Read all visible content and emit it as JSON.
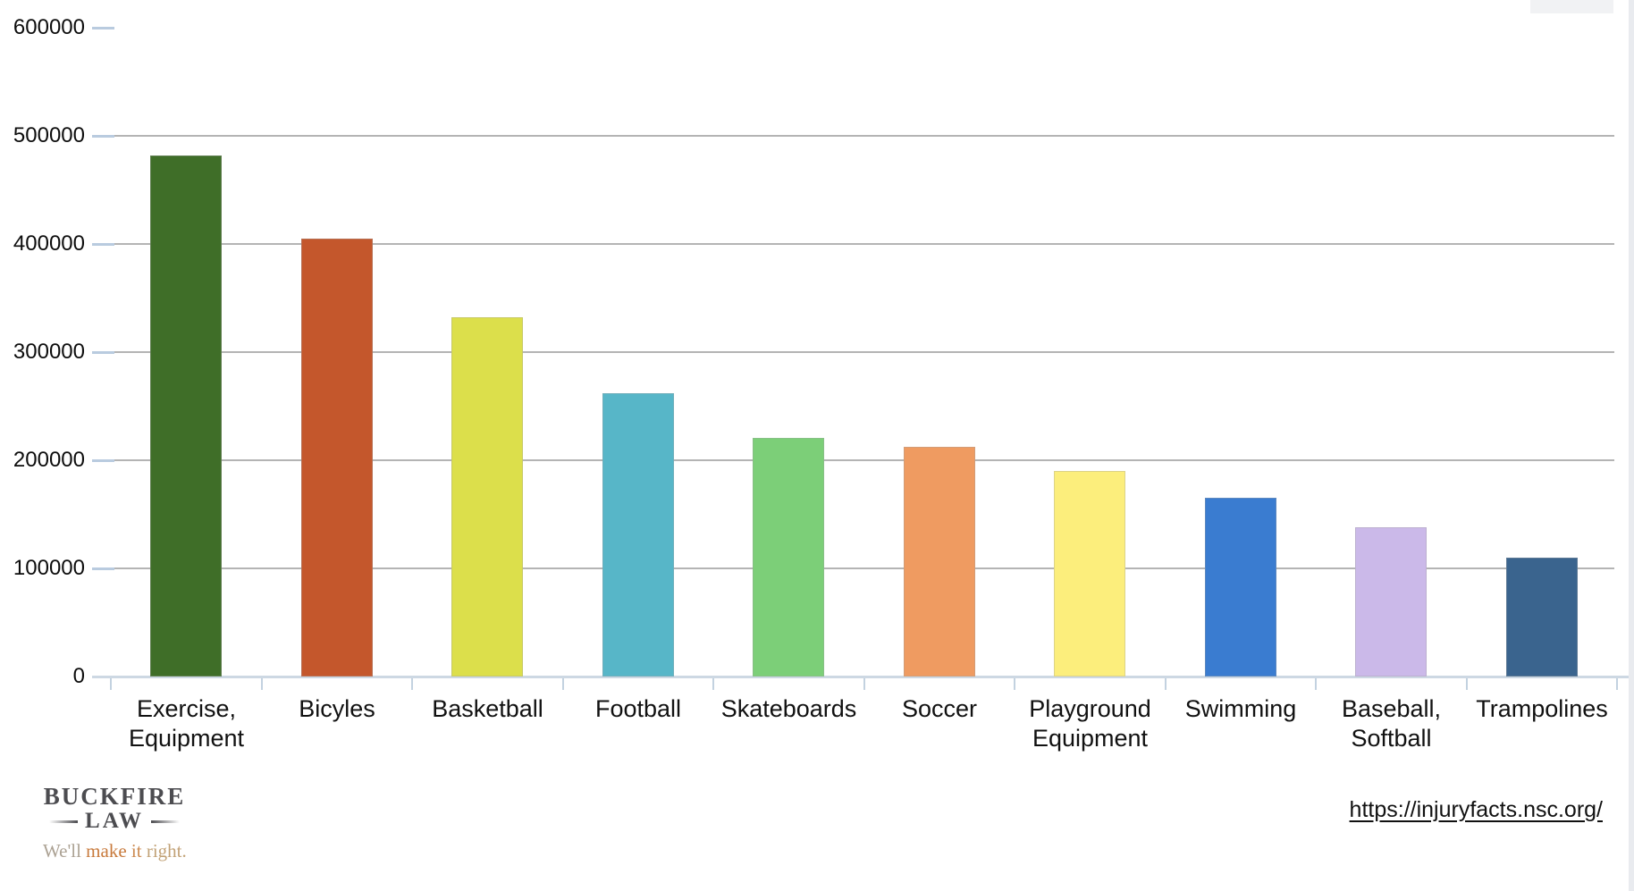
{
  "chart_data": {
    "type": "bar",
    "categories": [
      "Exercise,\nEquipment",
      "Bicyles",
      "Basketball",
      "Football",
      "Skateboards",
      "Soccer",
      "Playground\nEquipment",
      "Swimming",
      "Baseball,\nSoftball",
      "Trampolines"
    ],
    "values": [
      482000,
      405000,
      332000,
      262000,
      221000,
      212000,
      190000,
      165000,
      138000,
      110000
    ],
    "bar_colors": [
      "#3f6e28",
      "#c4572c",
      "#dcdf4b",
      "#57b6c8",
      "#7ccf78",
      "#ef9b61",
      "#fcee7c",
      "#3a7cd0",
      "#cbb9e9",
      "#3a648e"
    ],
    "title": "",
    "xlabel": "",
    "ylabel": "",
    "ylim": [
      0,
      600000
    ],
    "ytick_interval": 100000,
    "ytick_labels": [
      "0",
      "100000",
      "200000",
      "300000",
      "400000",
      "500000",
      "600000"
    ],
    "grid": true,
    "gridline_values": [
      100000,
      200000,
      300000,
      400000,
      500000
    ],
    "legend_position": "none"
  },
  "footer": {
    "logo": {
      "name": "BUCKFIRE",
      "sub": "LAW",
      "tagline": {
        "word1": "We'll",
        "word2": "make",
        "word3": "it",
        "word4": "right."
      }
    },
    "source_link": "https://injuryfacts.nsc.org/"
  },
  "colors": {
    "tagline_word1": "#aca294",
    "tagline_word2": "#c87a3c",
    "tagline_word3": "#cc8a50",
    "tagline_word4": "#c2a277",
    "gridline": "#b4b4b4",
    "axis_line": "#cdd8e3",
    "tick": "#b9cbdf",
    "label_text": "#111111"
  }
}
